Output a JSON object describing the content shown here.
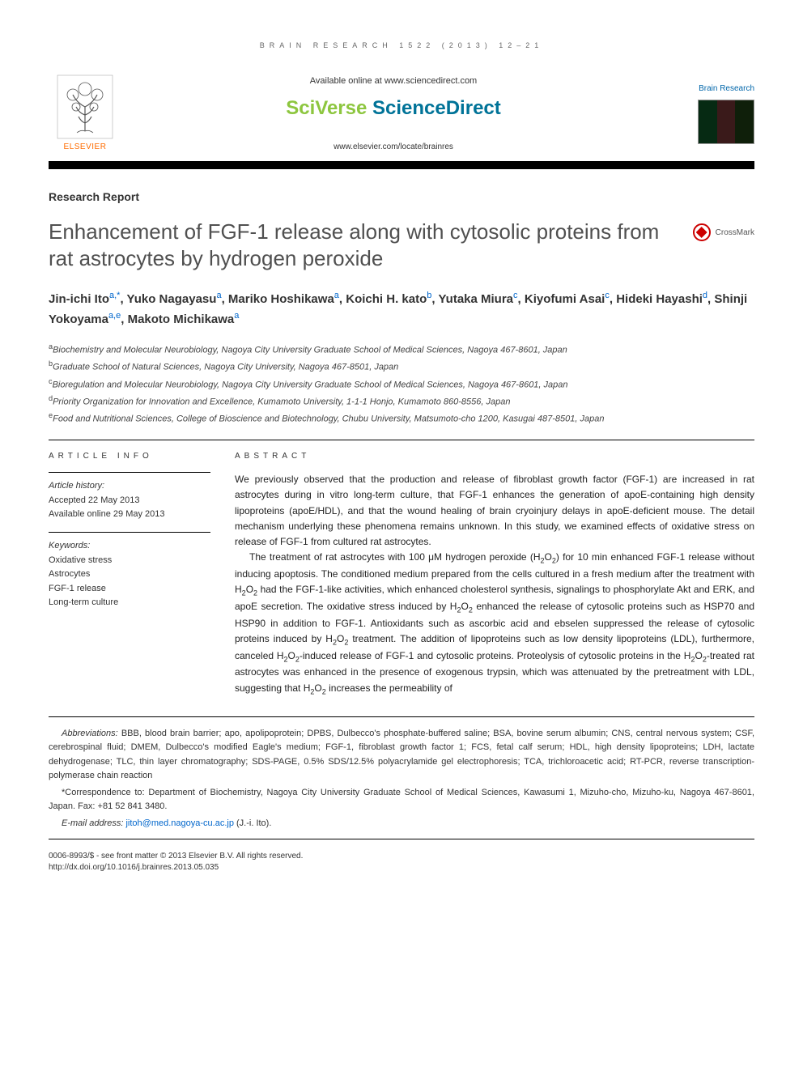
{
  "running_head": "BRAIN RESEARCH 1522 (2013) 12–21",
  "header": {
    "available_text": "Available online at www.sciencedirect.com",
    "sciverse_a": "SciVerse ",
    "sciverse_b": "ScienceDirect",
    "journal_url": "www.elsevier.com/locate/brainres",
    "elsevier_label": "ELSEVIER",
    "cover_title": "Brain Research"
  },
  "article_type": "Research Report",
  "title": "Enhancement of FGF-1 release along with cytosolic proteins from rat astrocytes by hydrogen peroxide",
  "crossmark_label": "CrossMark",
  "authors": [
    {
      "name": "Jin-ichi Ito",
      "aff": "a,*"
    },
    {
      "name": "Yuko Nagayasu",
      "aff": "a"
    },
    {
      "name": "Mariko Hoshikawa",
      "aff": "a"
    },
    {
      "name": "Koichi H. kato",
      "aff": "b"
    },
    {
      "name": "Yutaka Miura",
      "aff": "c"
    },
    {
      "name": "Kiyofumi Asai",
      "aff": "c"
    },
    {
      "name": "Hideki Hayashi",
      "aff": "d"
    },
    {
      "name": "Shinji Yokoyama",
      "aff": "a,e"
    },
    {
      "name": "Makoto Michikawa",
      "aff": "a"
    }
  ],
  "affiliations": [
    {
      "key": "a",
      "text": "Biochemistry and Molecular Neurobiology, Nagoya City University Graduate School of Medical Sciences, Nagoya 467-8601, Japan"
    },
    {
      "key": "b",
      "text": "Graduate School of Natural Sciences, Nagoya City University, Nagoya 467-8501, Japan"
    },
    {
      "key": "c",
      "text": "Bioregulation and Molecular Neurobiology, Nagoya City University Graduate School of Medical Sciences, Nagoya 467-8601, Japan"
    },
    {
      "key": "d",
      "text": "Priority Organization for Innovation and Excellence, Kumamoto University, 1-1-1 Honjo, Kumamoto 860-8556, Japan"
    },
    {
      "key": "e",
      "text": "Food and Nutritional Sciences, College of Bioscience and Biotechnology, Chubu University, Matsumoto-cho 1200, Kasugai 487-8501, Japan"
    }
  ],
  "article_info": {
    "heading": "article info",
    "history_label": "Article history:",
    "accepted": "Accepted 22 May 2013",
    "online": "Available online 29 May 2013",
    "keywords_label": "Keywords:",
    "keywords": [
      "Oxidative stress",
      "Astrocytes",
      "FGF-1 release",
      "Long-term culture"
    ]
  },
  "abstract": {
    "heading": "abstract",
    "p1": "We previously observed that the production and release of fibroblast growth factor (FGF-1) are increased in rat astrocytes during in vitro long-term culture, that FGF-1 enhances the generation of apoE-containing high density lipoproteins (apoE/HDL), and that the wound healing of brain cryoinjury delays in apoE-deficient mouse. The detail mechanism underlying these phenomena remains unknown. In this study, we examined effects of oxidative stress on release of FGF-1 from cultured rat astrocytes.",
    "p2_html": "The treatment of rat astrocytes with 100 μM hydrogen peroxide (H<sub>2</sub>O<sub>2</sub>) for 10 min enhanced FGF-1 release without inducing apoptosis. The conditioned medium prepared from the cells cultured in a fresh medium after the treatment with H<sub>2</sub>O<sub>2</sub> had the FGF-1-like activities, which enhanced cholesterol synthesis, signalings to phosphorylate Akt and ERK, and apoE secretion. The oxidative stress induced by H<sub>2</sub>O<sub>2</sub> enhanced the release of cytosolic proteins such as HSP70 and HSP90 in addition to FGF-1. Antioxidants such as ascorbic acid and ebselen suppressed the release of cytosolic proteins induced by H<sub>2</sub>O<sub>2</sub> treatment. The addition of lipoproteins such as low density lipoproteins (LDL), furthermore, canceled H<sub>2</sub>O<sub>2</sub>-induced release of FGF-1 and cytosolic proteins. Proteolysis of cytosolic proteins in the H<sub>2</sub>O<sub>2</sub>-treated rat astrocytes was enhanced in the presence of exogenous trypsin, which was attenuated by the pretreatment with LDL, suggesting that H<sub>2</sub>O<sub>2</sub> increases the permeability of"
  },
  "footnotes": {
    "abbrev_label": "Abbreviations:",
    "abbrev_text": " BBB,  blood brain barrier; apo,  apolipoprotein; DPBS,  Dulbecco's phosphate-buffered saline; BSA,  bovine serum albumin; CNS,  central nervous system; CSF,  cerebrospinal fluid; DMEM,  Dulbecco's modified Eagle's medium; FGF-1,  fibroblast growth factor 1; FCS,  fetal calf serum; HDL,  high density lipoproteins; LDH,  lactate dehydrogenase; TLC,  thin layer chromatography; SDS-PAGE,  0.5% SDS/12.5% polyacrylamide gel electrophoresis; TCA,  trichloroacetic acid; RT-PCR,  reverse transcription-polymerase chain reaction",
    "corr_text": "*Correspondence to: Department of Biochemistry, Nagoya City University Graduate School of Medical Sciences, Kawasumi 1, Mizuho-cho, Mizuho-ku, Nagoya 467-8601, Japan. Fax: +81 52 841 3480.",
    "email_label": "E-mail address:",
    "email": "jitoh@med.nagoya-cu.ac.jp",
    "email_suffix": " (J.-i. Ito)."
  },
  "copyright": {
    "line1": "0006-8993/$ - see front matter © 2013 Elsevier B.V. All rights reserved.",
    "line2": "http://dx.doi.org/10.1016/j.brainres.2013.05.035"
  },
  "colors": {
    "elsevier_orange": "#ff6c00",
    "sciverse_green": "#8dc63f",
    "sciverse_teal": "#007398",
    "link_blue": "#0066cc",
    "text_gray": "#333333",
    "title_gray": "#505050"
  },
  "cover_thumb_colors": [
    "#062a13",
    "#3a1a1a",
    "#0f1f0a"
  ]
}
